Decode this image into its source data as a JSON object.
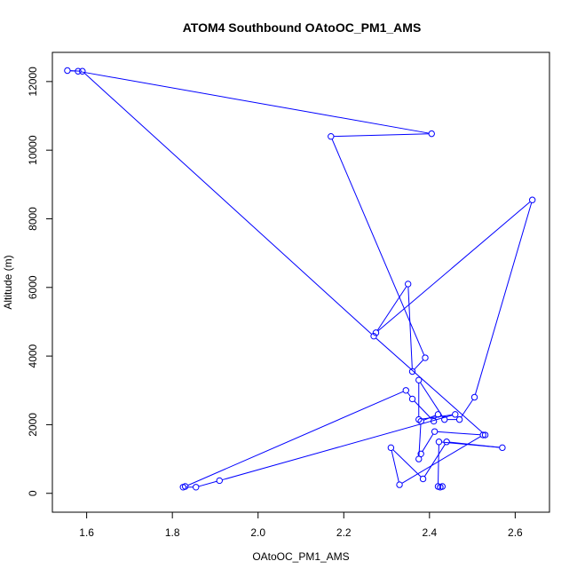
{
  "chart_data": {
    "type": "line",
    "title": "ATOM4 Southbound OAtoOC_PM1_AMS",
    "xlabel": "OAtoOC_PM1_AMS",
    "ylabel": "Altitude (m)",
    "xlim": [
      1.52,
      2.68
    ],
    "ylim": [
      -550,
      12850
    ],
    "x_ticks": [
      1.6,
      1.8,
      2.0,
      2.2,
      2.4,
      2.6
    ],
    "x_tick_labels": [
      "1.6",
      "1.8",
      "2.0",
      "2.2",
      "2.4",
      "2.6"
    ],
    "y_ticks": [
      0,
      2000,
      4000,
      6000,
      8000,
      10000,
      12000
    ],
    "y_tick_labels": [
      "0",
      "2000",
      "4000",
      "6000",
      "8000",
      "10000",
      "12000"
    ],
    "series_color": "#0000ff",
    "points": [
      {
        "x": 2.43,
        "y": 200
      },
      {
        "x": 2.425,
        "y": 180
      },
      {
        "x": 2.42,
        "y": 200
      },
      {
        "x": 2.422,
        "y": 1500
      },
      {
        "x": 2.57,
        "y": 1330
      },
      {
        "x": 2.44,
        "y": 1500
      },
      {
        "x": 2.385,
        "y": 420
      },
      {
        "x": 2.31,
        "y": 1330
      },
      {
        "x": 2.33,
        "y": 250
      },
      {
        "x": 2.525,
        "y": 1700
      },
      {
        "x": 2.412,
        "y": 1800
      },
      {
        "x": 2.38,
        "y": 1150
      },
      {
        "x": 2.375,
        "y": 1000
      },
      {
        "x": 2.38,
        "y": 2100
      },
      {
        "x": 2.42,
        "y": 2300
      },
      {
        "x": 2.41,
        "y": 2100
      },
      {
        "x": 2.36,
        "y": 2750
      },
      {
        "x": 2.345,
        "y": 3000
      },
      {
        "x": 1.83,
        "y": 200
      },
      {
        "x": 1.825,
        "y": 180
      },
      {
        "x": 1.855,
        "y": 180
      },
      {
        "x": 1.91,
        "y": 370
      },
      {
        "x": 2.46,
        "y": 2300
      },
      {
        "x": 2.375,
        "y": 2150
      },
      {
        "x": 2.375,
        "y": 3300
      },
      {
        "x": 2.435,
        "y": 2150
      },
      {
        "x": 2.47,
        "y": 2150
      },
      {
        "x": 2.505,
        "y": 2800
      },
      {
        "x": 2.64,
        "y": 8550
      },
      {
        "x": 2.275,
        "y": 4680
      },
      {
        "x": 2.35,
        "y": 6100
      },
      {
        "x": 2.36,
        "y": 3550
      },
      {
        "x": 2.39,
        "y": 3950
      },
      {
        "x": 2.17,
        "y": 10400
      },
      {
        "x": 2.405,
        "y": 10480
      },
      {
        "x": 1.58,
        "y": 12300
      },
      {
        "x": 1.555,
        "y": 12320
      },
      {
        "x": 1.59,
        "y": 12300
      },
      {
        "x": 2.27,
        "y": 4580
      },
      {
        "x": 2.53,
        "y": 1700
      }
    ]
  }
}
